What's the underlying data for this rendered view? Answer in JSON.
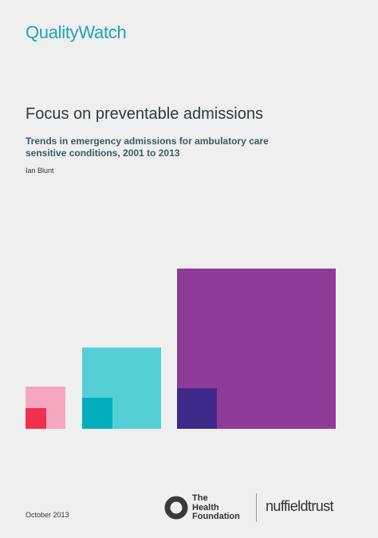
{
  "header": {
    "brand": "QualityWatch"
  },
  "cover": {
    "title": "Focus on preventable admissions",
    "subtitle": "Trends in emergency admissions for ambulatory care sensitive conditions, 2001 to 2013",
    "author": "Ian Blunt"
  },
  "footer": {
    "date": "October 2013",
    "logos": [
      {
        "lines": [
          "The",
          "Health",
          "Foundation"
        ]
      },
      {
        "text": "nuffieldtrust"
      }
    ]
  }
}
